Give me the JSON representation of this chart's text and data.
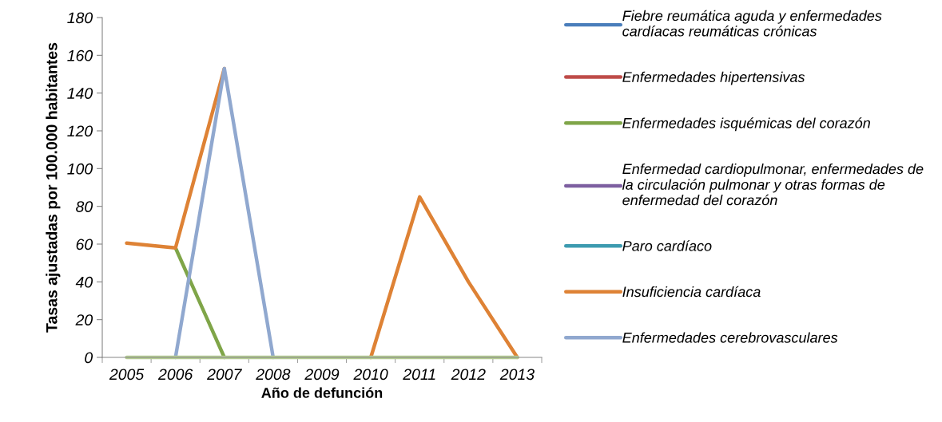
{
  "chart_data": {
    "type": "line",
    "xlabel": "Año de defunción",
    "ylabel": "Tasas ajustadas por 100.000 habitantes",
    "categories": [
      "2005",
      "2006",
      "2007",
      "2008",
      "2009",
      "2010",
      "2011",
      "2012",
      "2013"
    ],
    "ylim": [
      0,
      180
    ],
    "yticks": [
      0,
      20,
      40,
      60,
      80,
      100,
      120,
      140,
      160,
      180
    ],
    "grid": false,
    "legend": "right",
    "marker": "none",
    "line_style": "solid",
    "series": [
      {
        "name": "Fiebre reumática aguda y enfermedades\ncardíacas reumáticas crónicas",
        "color": "#4a7ebb",
        "values": [
          null,
          null,
          null,
          null,
          null,
          null,
          null,
          null,
          null
        ]
      },
      {
        "name": "Enfermedades hipertensivas",
        "color": "#be4b48",
        "values": [
          null,
          null,
          null,
          null,
          null,
          null,
          null,
          null,
          null
        ]
      },
      {
        "name": "Enfermedades isquémicas del corazón",
        "color": "#7fa548",
        "values": [
          null,
          58,
          0,
          null,
          null,
          null,
          null,
          null,
          null
        ]
      },
      {
        "name": "Enfermedad cardiopulmonar, enfermedades de\nla circulación pulmonar y otras formas de\nenfermedad del corazón",
        "color": "#7d5fa0",
        "values": [
          null,
          null,
          null,
          null,
          null,
          null,
          null,
          null,
          null
        ]
      },
      {
        "name": "Paro cardíaco",
        "color": "#3d9bb0",
        "values": [
          null,
          null,
          null,
          null,
          null,
          null,
          null,
          null,
          null
        ]
      },
      {
        "name": "Insuficiencia cardíaca",
        "color": "#de8235",
        "values": [
          60.5,
          58,
          153,
          null,
          null,
          0,
          85,
          40,
          0
        ]
      },
      {
        "name": "Enfermedades cerebrovasculares",
        "color": "#90a8cf",
        "values": [
          null,
          0,
          153,
          0,
          null,
          null,
          null,
          null,
          null
        ]
      },
      {
        "color": "#b5cc93",
        "values": [
          0,
          0,
          0,
          0,
          0,
          0,
          0,
          0,
          0
        ]
      }
    ]
  }
}
